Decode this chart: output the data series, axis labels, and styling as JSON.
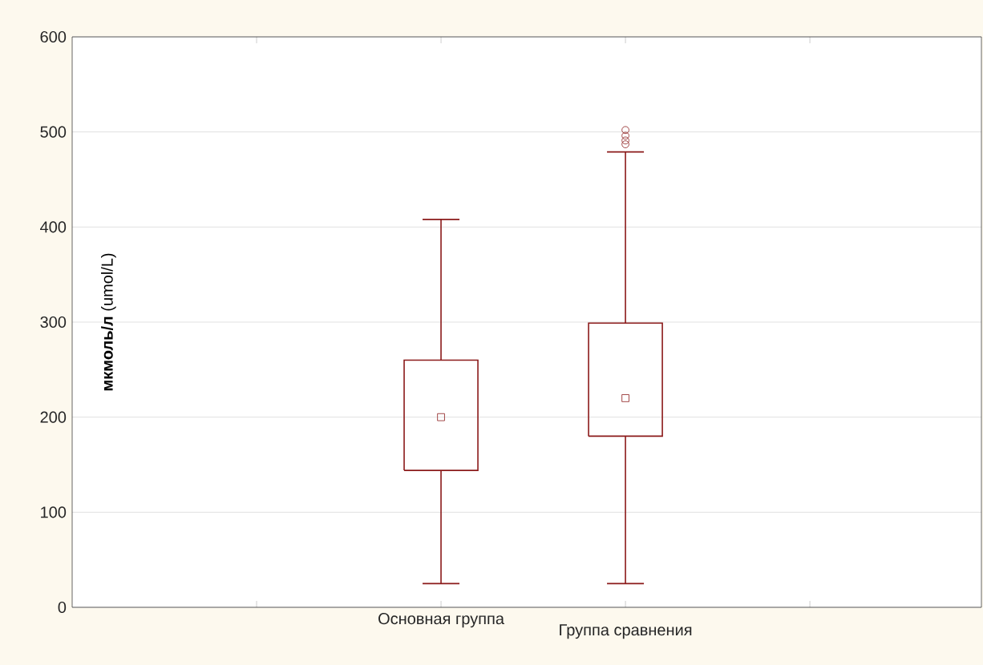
{
  "chart_data": {
    "type": "box",
    "ylabel": "**мкмоль/л** (umol/L)",
    "categories": [
      "Основная группа",
      "Группа сравнения"
    ],
    "series": [
      {
        "color": "#8b1a1a",
        "boxes": [
          {
            "low": 25,
            "q1": 144,
            "median": 200,
            "q3": 260,
            "high": 408
          },
          {
            "low": 25,
            "q1": 180,
            "median": 220,
            "q3": 299,
            "high": 479,
            "outliers": [
              487,
              491,
              496,
              502
            ]
          }
        ]
      }
    ],
    "ylim": [
      0,
      600
    ],
    "yticks": [
      0,
      100,
      200,
      300,
      400,
      500,
      600
    ],
    "grid": "y"
  }
}
